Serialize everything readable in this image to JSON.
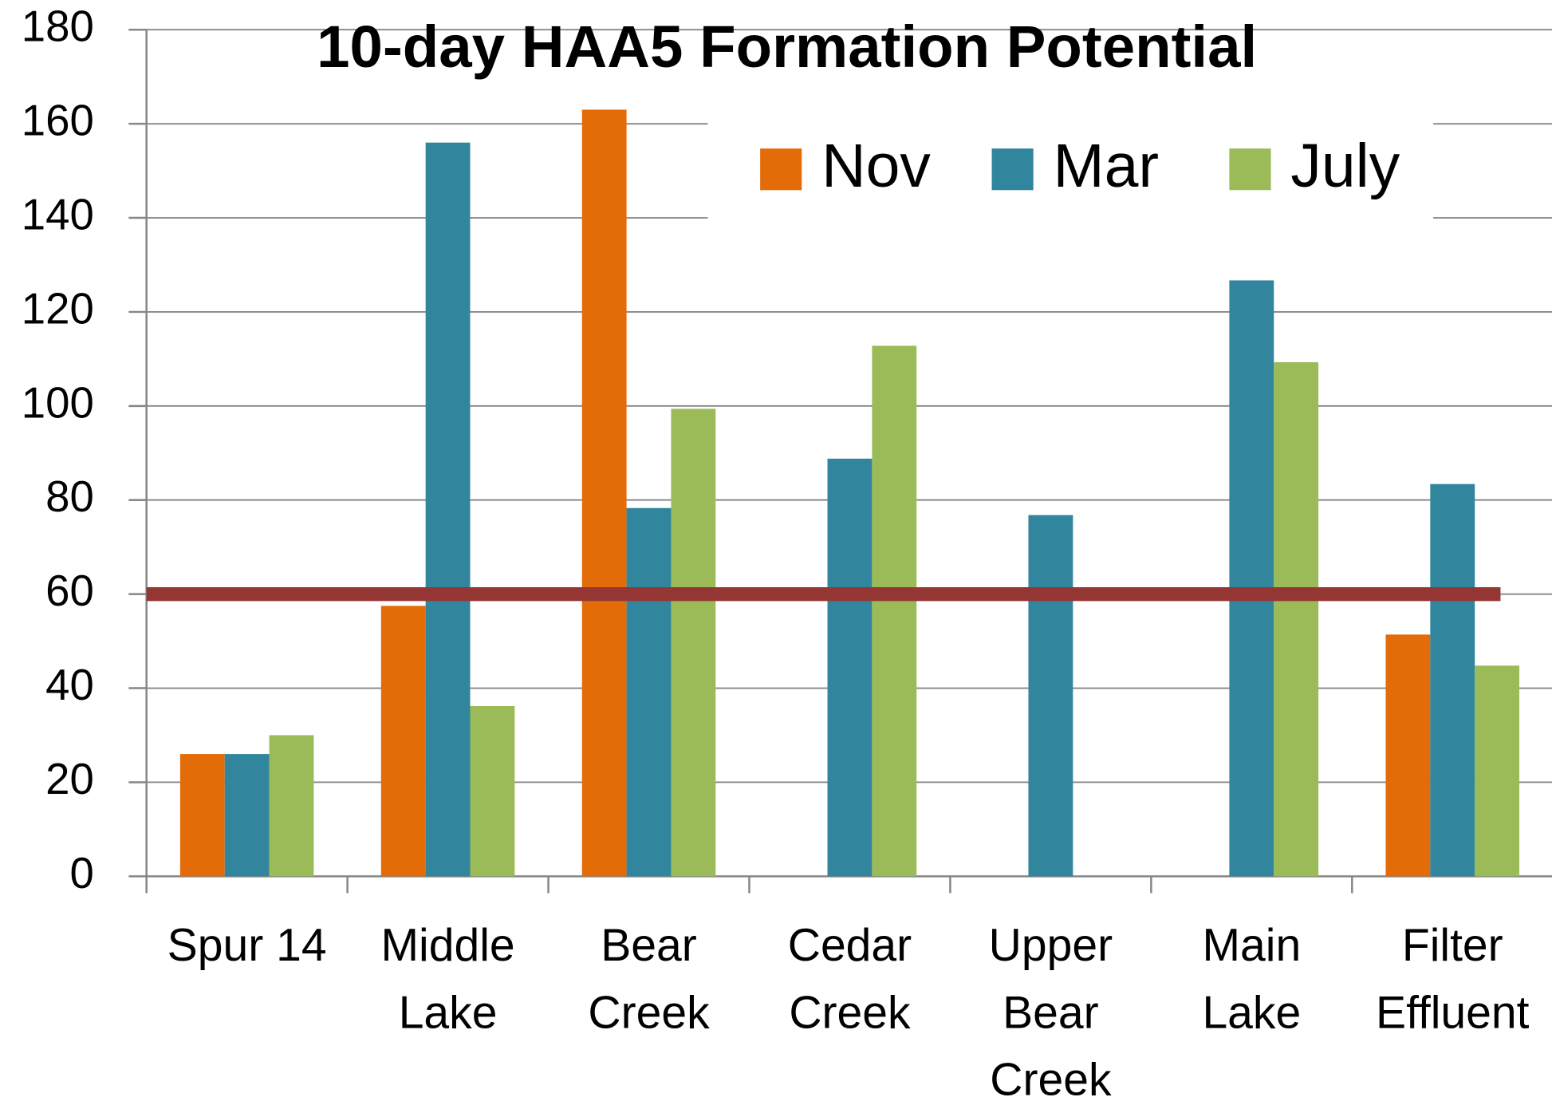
{
  "chart_data": {
    "type": "bar",
    "title": "10-day HAA5 Formation Potential",
    "categories": [
      "Spur 14",
      "Middle Lake",
      "Bear Creek",
      "Cedar Creek",
      "Upper Bear Creek",
      "Main Lake",
      "Filter Effluent"
    ],
    "series": [
      {
        "name": "Nov",
        "color": "#e36c09",
        "values": [
          26,
          57.5,
          163,
          null,
          null,
          null,
          51.4
        ]
      },
      {
        "name": "Mar",
        "color": "#31859c",
        "values": [
          26,
          156,
          78.3,
          88.8,
          76.8,
          126.7,
          83.4
        ]
      },
      {
        "name": "July",
        "color": "#9bbb59",
        "values": [
          30,
          36.2,
          99.4,
          112.8,
          null,
          109.3,
          44.8
        ]
      }
    ],
    "ylim": [
      0,
      180
    ],
    "yticks": [
      0,
      20,
      40,
      60,
      80,
      100,
      120,
      140,
      160,
      180
    ],
    "grid": true,
    "legend": "top-right",
    "reference_line": {
      "value": 60,
      "color": "#943634"
    }
  }
}
